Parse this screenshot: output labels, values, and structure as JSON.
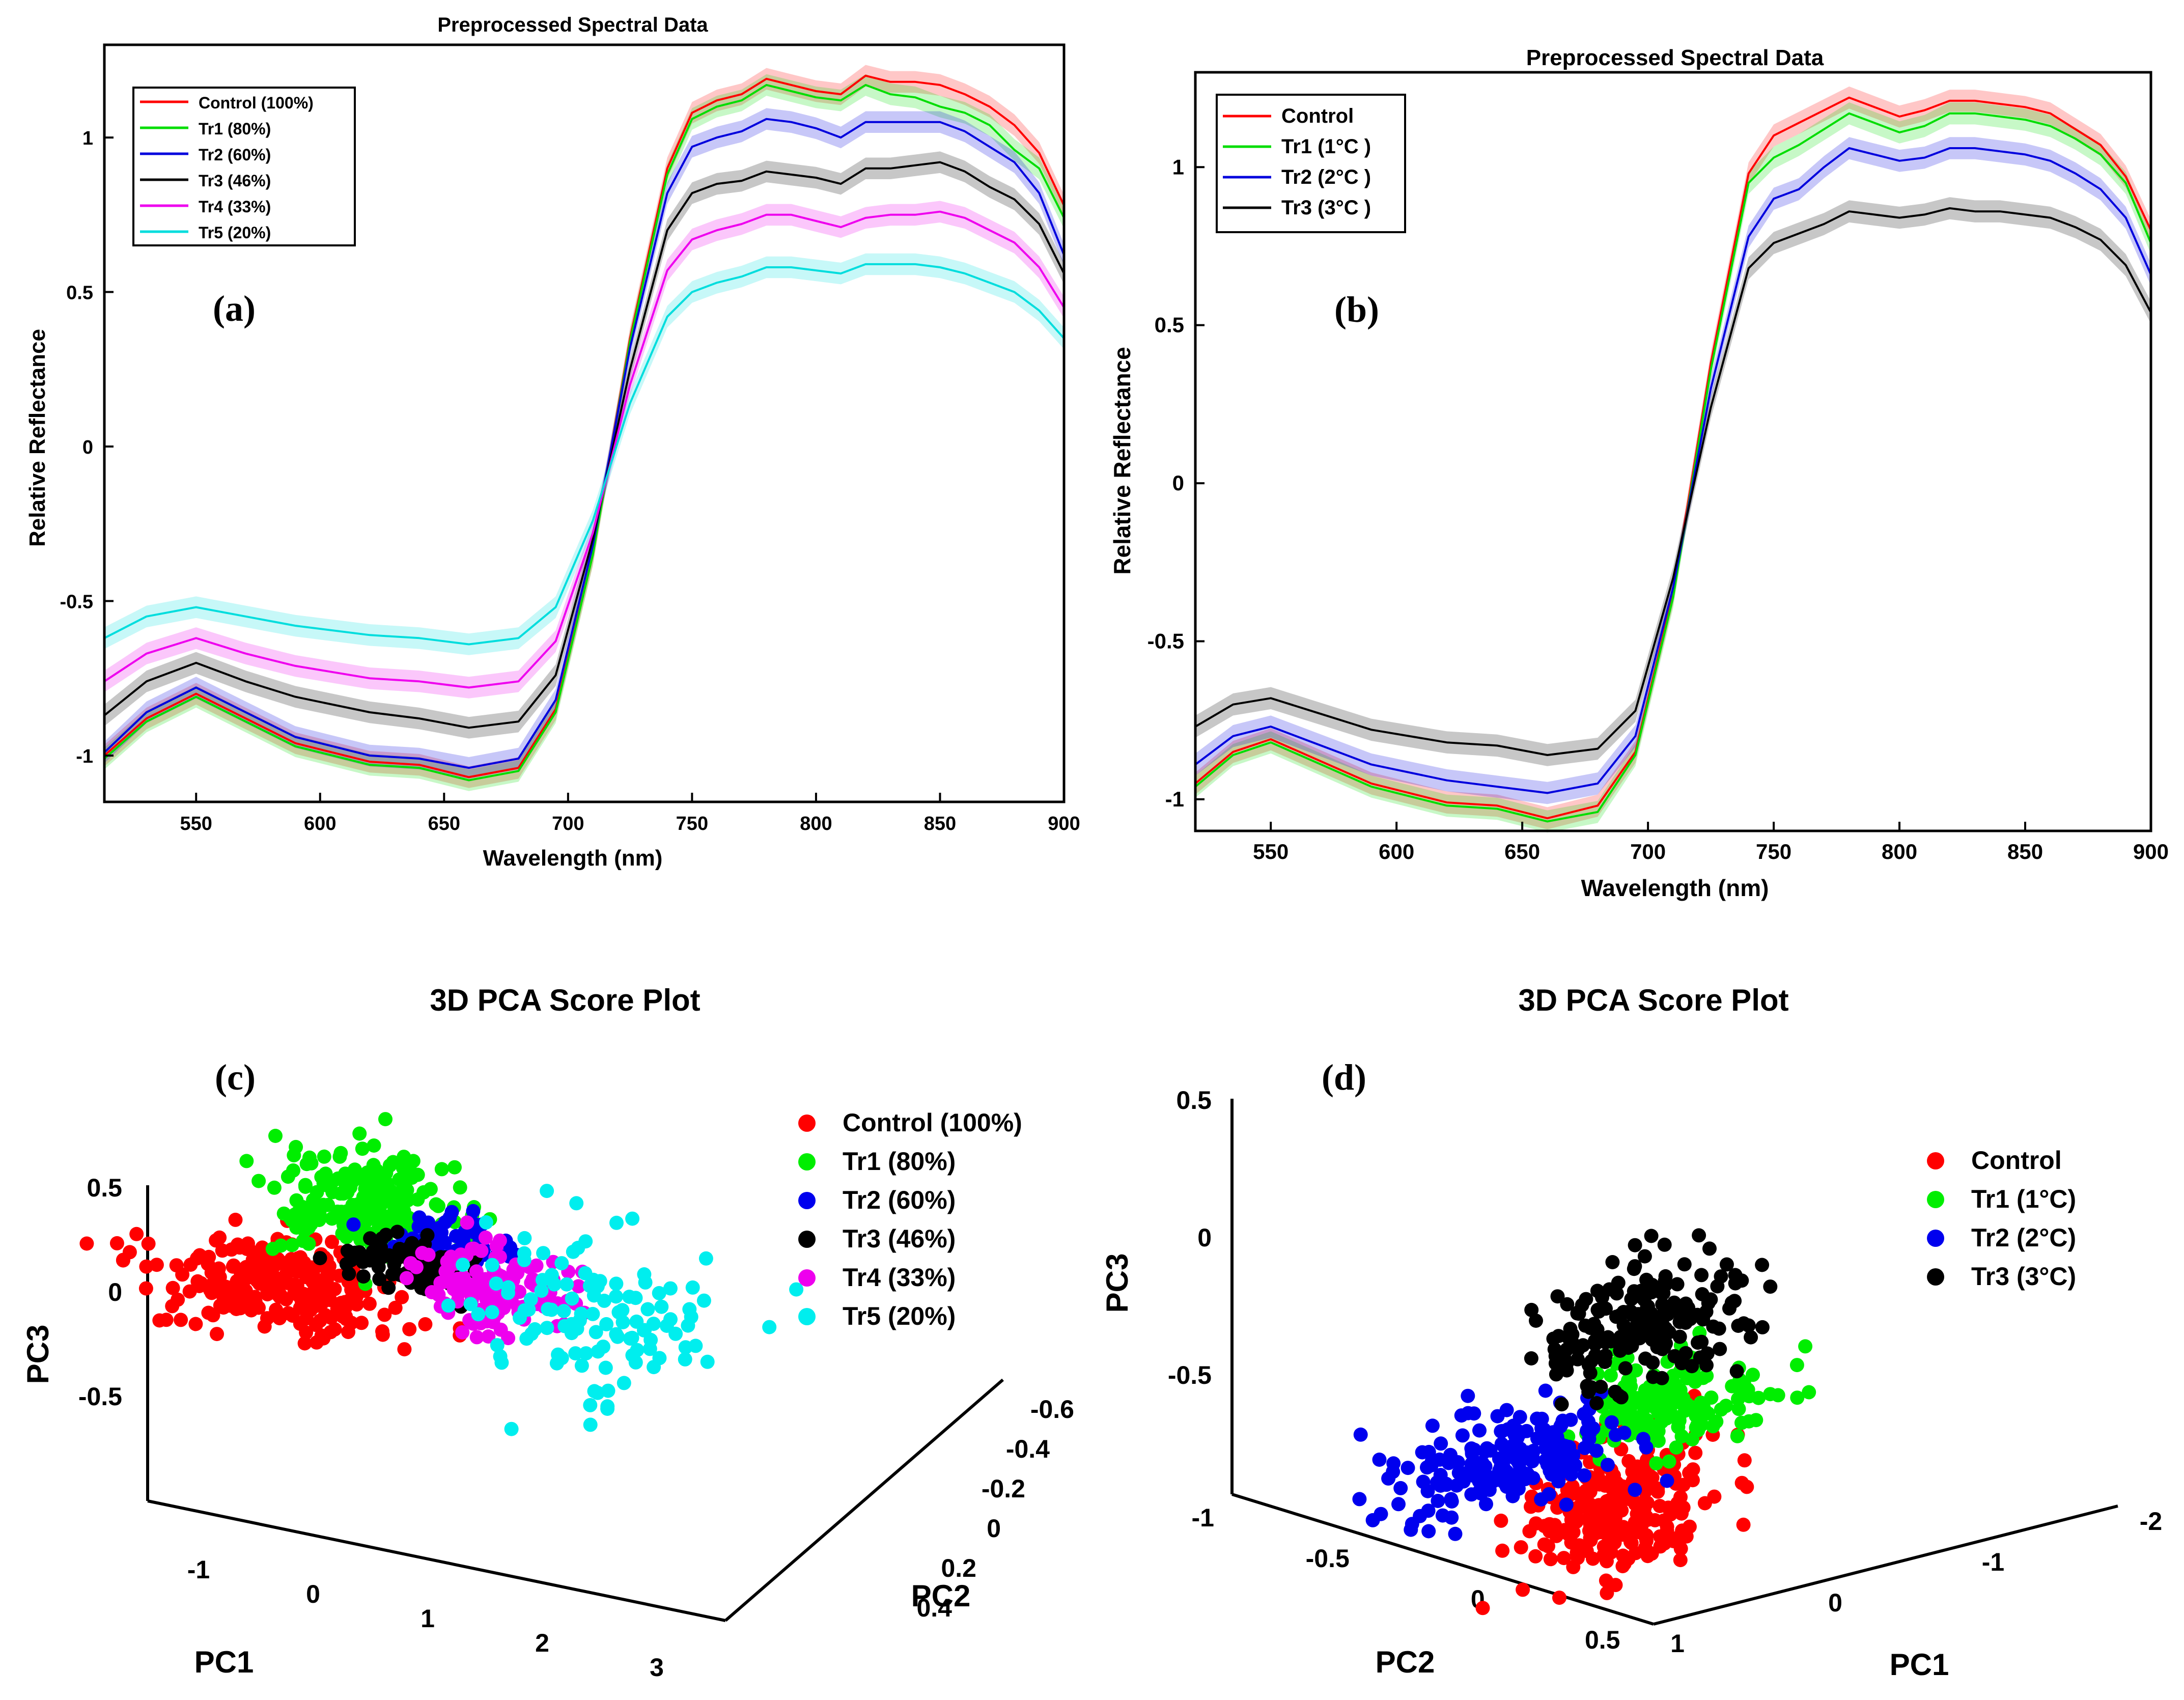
{
  "chart_data": [
    {
      "id": "a",
      "type": "line",
      "panel_label": "(a)",
      "title": "Preprocessed Spectral Data",
      "xlabel": "Wavelength (nm)",
      "ylabel": "Relative Reflectance",
      "xlim": [
        513,
        900
      ],
      "ylim": [
        -1.15,
        1.3
      ],
      "xticks": [
        550,
        600,
        650,
        700,
        750,
        800,
        850,
        900
      ],
      "yticks": [
        -1,
        -0.5,
        0,
        0.5,
        1
      ],
      "x": [
        513,
        530,
        550,
        570,
        590,
        620,
        640,
        660,
        680,
        695,
        710,
        725,
        740,
        750,
        760,
        770,
        780,
        790,
        800,
        810,
        820,
        830,
        840,
        850,
        860,
        870,
        880,
        890,
        900
      ],
      "series": [
        {
          "name": "Control (100%)",
          "color": "#ff0000",
          "values": [
            -1.0,
            -0.88,
            -0.8,
            -0.88,
            -0.96,
            -1.02,
            -1.03,
            -1.07,
            -1.04,
            -0.85,
            -0.35,
            0.35,
            0.9,
            1.08,
            1.12,
            1.14,
            1.19,
            1.17,
            1.15,
            1.14,
            1.2,
            1.18,
            1.18,
            1.17,
            1.14,
            1.1,
            1.04,
            0.95,
            0.78
          ]
        },
        {
          "name": "Tr1 (80%)",
          "color": "#00dd00",
          "values": [
            -1.01,
            -0.89,
            -0.81,
            -0.89,
            -0.97,
            -1.03,
            -1.04,
            -1.08,
            -1.05,
            -0.86,
            -0.35,
            0.34,
            0.88,
            1.06,
            1.1,
            1.12,
            1.17,
            1.15,
            1.13,
            1.12,
            1.17,
            1.14,
            1.13,
            1.1,
            1.08,
            1.04,
            0.96,
            0.9,
            0.74
          ]
        },
        {
          "name": "Tr2 (60%)",
          "color": "#0000dd",
          "values": [
            -0.99,
            -0.86,
            -0.78,
            -0.86,
            -0.94,
            -1.0,
            -1.01,
            -1.04,
            -1.01,
            -0.82,
            -0.32,
            0.32,
            0.82,
            0.97,
            1.0,
            1.02,
            1.06,
            1.05,
            1.03,
            1.0,
            1.05,
            1.05,
            1.05,
            1.05,
            1.02,
            0.97,
            0.92,
            0.82,
            0.62
          ]
        },
        {
          "name": "Tr3 (46%)",
          "color": "#000000",
          "values": [
            -0.87,
            -0.76,
            -0.7,
            -0.76,
            -0.81,
            -0.86,
            -0.88,
            -0.91,
            -0.89,
            -0.74,
            -0.3,
            0.25,
            0.7,
            0.82,
            0.85,
            0.86,
            0.89,
            0.88,
            0.87,
            0.85,
            0.9,
            0.9,
            0.91,
            0.92,
            0.89,
            0.84,
            0.8,
            0.72,
            0.56
          ]
        },
        {
          "name": "Tr4 (33%)",
          "color": "#ee00ee",
          "values": [
            -0.76,
            -0.67,
            -0.62,
            -0.67,
            -0.71,
            -0.75,
            -0.76,
            -0.78,
            -0.76,
            -0.63,
            -0.28,
            0.2,
            0.57,
            0.67,
            0.7,
            0.72,
            0.75,
            0.75,
            0.73,
            0.71,
            0.74,
            0.75,
            0.75,
            0.76,
            0.74,
            0.7,
            0.66,
            0.58,
            0.45
          ]
        },
        {
          "name": "Tr5 (20%)",
          "color": "#00dddd",
          "values": [
            -0.62,
            -0.55,
            -0.52,
            -0.55,
            -0.58,
            -0.61,
            -0.62,
            -0.64,
            -0.62,
            -0.52,
            -0.24,
            0.14,
            0.42,
            0.5,
            0.53,
            0.55,
            0.58,
            0.58,
            0.57,
            0.56,
            0.59,
            0.59,
            0.59,
            0.58,
            0.56,
            0.53,
            0.5,
            0.44,
            0.35
          ]
        }
      ]
    },
    {
      "id": "b",
      "type": "line",
      "panel_label": "(b)",
      "title": "Preprocessed Spectral Data",
      "xlabel": "Wavelength (nm)",
      "ylabel": "Relative Reflectance",
      "xlim": [
        520,
        900
      ],
      "ylim": [
        -1.1,
        1.3
      ],
      "xticks": [
        550,
        600,
        650,
        700,
        750,
        800,
        850,
        900
      ],
      "yticks": [
        -1,
        -0.5,
        0,
        0.5,
        1
      ],
      "x": [
        520,
        535,
        550,
        570,
        590,
        620,
        640,
        660,
        680,
        695,
        710,
        725,
        740,
        750,
        760,
        770,
        780,
        790,
        800,
        810,
        820,
        830,
        840,
        850,
        860,
        870,
        880,
        890,
        900
      ],
      "series": [
        {
          "name": "Control",
          "color": "#ff0000",
          "values": [
            -0.95,
            -0.85,
            -0.81,
            -0.88,
            -0.95,
            -1.01,
            -1.02,
            -1.06,
            -1.02,
            -0.85,
            -0.35,
            0.38,
            0.98,
            1.1,
            1.14,
            1.18,
            1.22,
            1.19,
            1.16,
            1.18,
            1.21,
            1.21,
            1.2,
            1.19,
            1.17,
            1.12,
            1.07,
            0.97,
            0.8
          ]
        },
        {
          "name": "Tr1 (1°C )",
          "color": "#00dd00",
          "values": [
            -0.96,
            -0.86,
            -0.82,
            -0.89,
            -0.96,
            -1.02,
            -1.03,
            -1.07,
            -1.04,
            -0.86,
            -0.36,
            0.36,
            0.95,
            1.03,
            1.07,
            1.12,
            1.17,
            1.14,
            1.11,
            1.13,
            1.17,
            1.17,
            1.16,
            1.15,
            1.13,
            1.09,
            1.04,
            0.95,
            0.76
          ]
        },
        {
          "name": "Tr2 (2°C )",
          "color": "#0000dd",
          "values": [
            -0.89,
            -0.8,
            -0.77,
            -0.83,
            -0.89,
            -0.94,
            -0.96,
            -0.98,
            -0.95,
            -0.8,
            -0.33,
            0.3,
            0.78,
            0.9,
            0.93,
            1.0,
            1.06,
            1.04,
            1.02,
            1.03,
            1.06,
            1.06,
            1.05,
            1.04,
            1.02,
            0.98,
            0.93,
            0.84,
            0.66
          ]
        },
        {
          "name": "Tr3 (3°C )",
          "color": "#000000",
          "values": [
            -0.77,
            -0.7,
            -0.68,
            -0.73,
            -0.78,
            -0.82,
            -0.83,
            -0.86,
            -0.84,
            -0.72,
            -0.3,
            0.24,
            0.68,
            0.76,
            0.79,
            0.82,
            0.86,
            0.85,
            0.84,
            0.85,
            0.87,
            0.86,
            0.86,
            0.85,
            0.84,
            0.81,
            0.77,
            0.69,
            0.54
          ]
        }
      ]
    },
    {
      "id": "c",
      "type": "scatter",
      "panel_label": "(c)",
      "title": "3D PCA Score Plot",
      "xlabel": "PC1",
      "ylabel": "PC2",
      "zlabel": "PC3",
      "xticks": [
        "-1",
        "0",
        "1",
        "2",
        "3"
      ],
      "yticks": [
        "-0.6",
        "-0.4",
        "-0.2",
        "0",
        "0.2",
        "0.4"
      ],
      "zticks": [
        "0.5",
        "0",
        "-0.5"
      ],
      "series": [
        {
          "name": "Control (100%)",
          "color": "#ff0000",
          "cluster": {
            "cx": 0.0,
            "cy": -0.05,
            "cz": 0.0,
            "sx": 0.45,
            "sy": 0.08,
            "sz": 0.1,
            "n": 240
          }
        },
        {
          "name": "Tr1 (80%)",
          "color": "#00ee00",
          "cluster": {
            "cx": 0.6,
            "cy": -0.1,
            "cz": 0.4,
            "sx": 0.35,
            "sy": 0.08,
            "sz": 0.12,
            "n": 200
          }
        },
        {
          "name": "Tr2 (60%)",
          "color": "#0000ee",
          "cluster": {
            "cx": 1.2,
            "cy": -0.15,
            "cz": 0.25,
            "sx": 0.25,
            "sy": 0.06,
            "sz": 0.06,
            "n": 60
          }
        },
        {
          "name": "Tr3 (46%)",
          "color": "#000000",
          "cluster": {
            "cx": 1.0,
            "cy": -0.1,
            "cz": 0.15,
            "sx": 0.3,
            "sy": 0.06,
            "sz": 0.06,
            "n": 90
          }
        },
        {
          "name": "Tr4 (33%)",
          "color": "#ee00ee",
          "cluster": {
            "cx": 1.6,
            "cy": -0.1,
            "cz": 0.1,
            "sx": 0.3,
            "sy": 0.08,
            "sz": 0.1,
            "n": 140
          }
        },
        {
          "name": "Tr5 (20%)",
          "color": "#00eeee",
          "cluster": {
            "cx": 2.2,
            "cy": -0.2,
            "cz": 0.05,
            "sx": 0.45,
            "sy": 0.1,
            "sz": 0.2,
            "n": 120
          }
        }
      ]
    },
    {
      "id": "d",
      "type": "scatter",
      "panel_label": "(d)",
      "title": "3D PCA Score Plot",
      "xlabel": "PC1",
      "ylabel": "PC2",
      "zlabel": "PC3",
      "xticks": [
        "-2",
        "-1",
        "0",
        "1"
      ],
      "yticks": [
        "-1",
        "-0.5",
        "0",
        "0.5"
      ],
      "zticks": [
        "0.5",
        "0",
        "-0.5"
      ],
      "series": [
        {
          "name": "Control",
          "color": "#ff0000",
          "cluster": {
            "cx": 0.2,
            "cy": 0.5,
            "cz": -0.45,
            "sx": 0.25,
            "sy": 0.1,
            "sz": 0.12,
            "n": 260
          }
        },
        {
          "name": "Tr1 (1°C)",
          "color": "#00ee00",
          "cluster": {
            "cx": 0.0,
            "cy": 0.1,
            "cz": -0.1,
            "sx": 0.3,
            "sy": 0.05,
            "sz": 0.08,
            "n": 160
          }
        },
        {
          "name": "Tr2 (2°C)",
          "color": "#0000ee",
          "cluster": {
            "cx": -1.0,
            "cy": 0.0,
            "cz": -0.2,
            "sx": 0.35,
            "sy": 0.05,
            "sz": 0.1,
            "n": 200
          }
        },
        {
          "name": "Tr3 (3°C)",
          "color": "#000000",
          "cluster": {
            "cx": -0.6,
            "cy": -0.3,
            "cz": 0.2,
            "sx": 0.3,
            "sy": 0.05,
            "sz": 0.12,
            "n": 200
          }
        }
      ]
    }
  ]
}
